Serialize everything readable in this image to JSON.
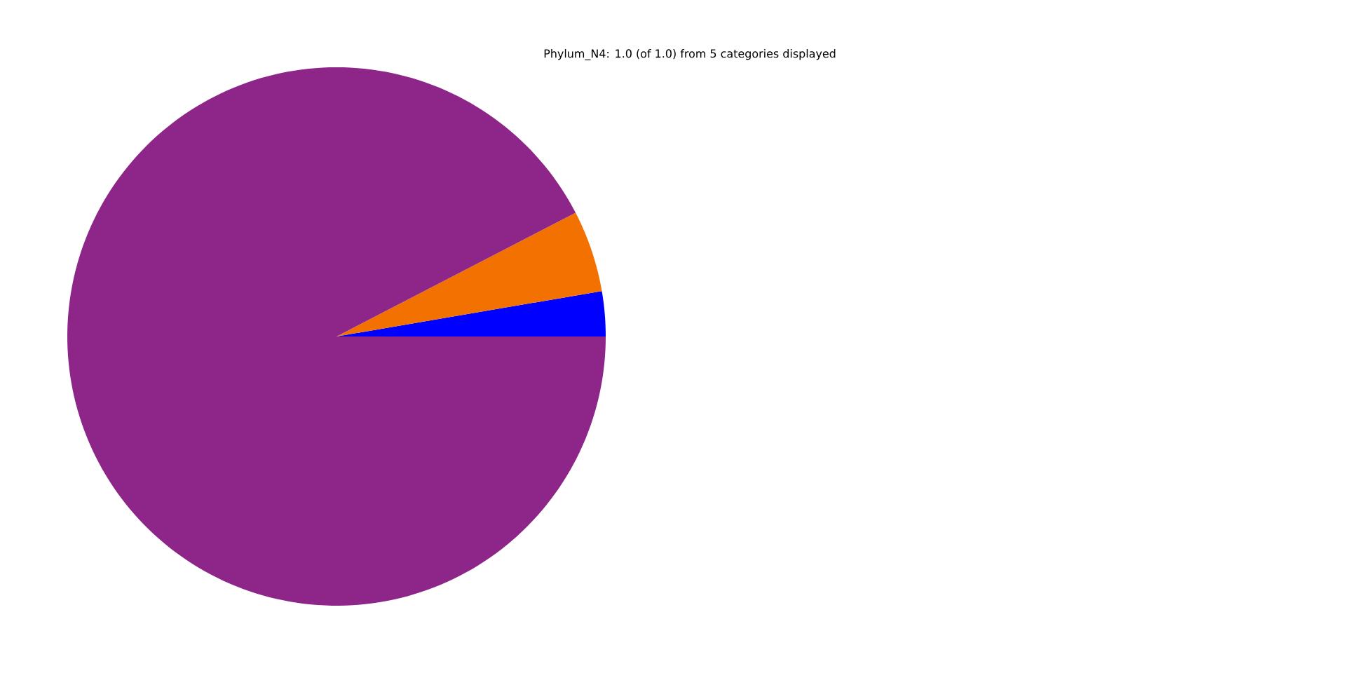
{
  "chart_data": {
    "type": "pie",
    "title": "Phylum_N4: 1.0 (of 1.0) from 5 categories displayed",
    "categories": [
      null,
      null,
      null
    ],
    "values": [
      2.7,
      4.9,
      92.4
    ],
    "colors": [
      "#0000ff",
      "#f27100",
      "#8e2589"
    ]
  }
}
